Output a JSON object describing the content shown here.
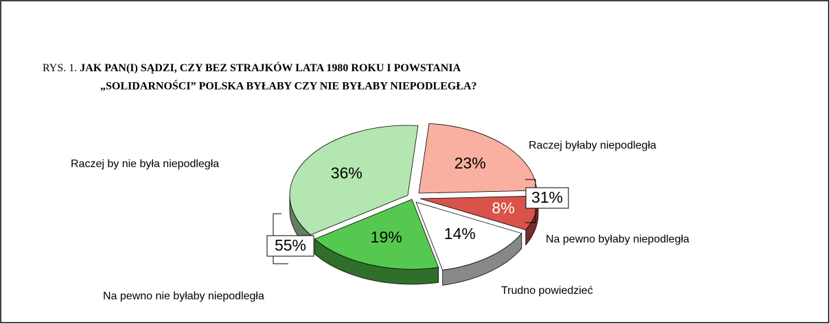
{
  "chart_data": {
    "type": "pie",
    "title_prefix": "RYS. 1.",
    "title": [
      "JAK PAN(I) SĄDZI, CZY BEZ STRAJKÓW LATA 1980 ROKU I POWSTANIA",
      "„SOLIDARNOŚCI” POLSKA BYŁABY CZY NIE BYŁABY NIEPODLEGŁA?"
    ],
    "categories": [
      "Raczej byłaby niepodległa",
      "Na pewno byłaby niepodległa",
      "Trudno powiedzieć",
      "Na pewno nie byłaby niepodległa",
      "Raczej by nie była niepodległa"
    ],
    "values": [
      23,
      8,
      14,
      19,
      36
    ],
    "value_labels": [
      "23%",
      "8%",
      "14%",
      "19%",
      "36%"
    ],
    "colors": [
      "#f9b0a0",
      "#d9534a",
      "#ffffff",
      "#55c94f",
      "#b3e6b0"
    ],
    "annotations": [
      "31%",
      "55%"
    ]
  }
}
